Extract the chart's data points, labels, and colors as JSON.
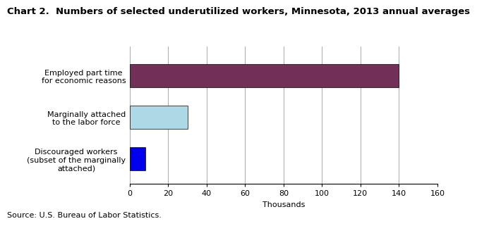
{
  "title": "Chart 2.  Numbers of selected underutilized workers, Minnesota, 2013 annual averages",
  "categories": [
    "Discouraged workers\n(subset of the marginally\nattached)",
    "Marginally attached\nto the labor force",
    "Employed part time\nfor economic reasons"
  ],
  "values": [
    8,
    30,
    140
  ],
  "bar_colors": [
    "#0000ee",
    "#add8e6",
    "#722f57"
  ],
  "xlim": [
    0,
    160
  ],
  "xticks": [
    0,
    20,
    40,
    60,
    80,
    100,
    120,
    140,
    160
  ],
  "xlabel": "Thousands",
  "source": "Source: U.S. Bureau of Labor Statistics.",
  "title_fontsize": 9.5,
  "label_fontsize": 8,
  "tick_fontsize": 8,
  "source_fontsize": 8,
  "bar_height": 0.55
}
